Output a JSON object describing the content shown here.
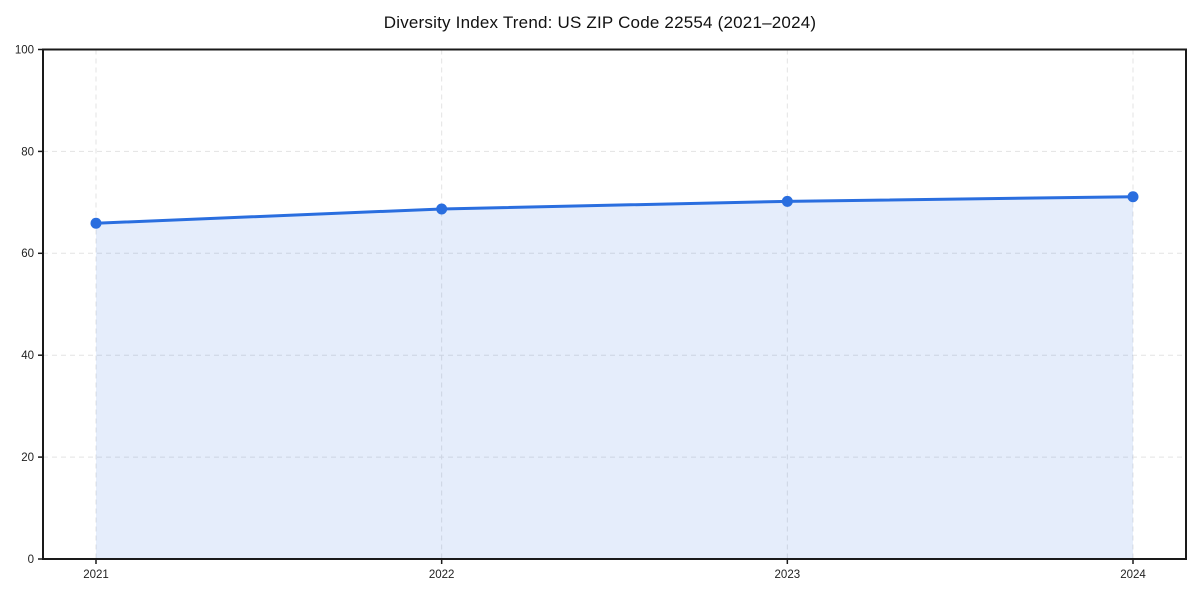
{
  "chart_data": {
    "type": "area",
    "title": "Diversity Index Trend: US ZIP Code 22554 (2021–2024)",
    "x": [
      2021,
      2022,
      2023,
      2024
    ],
    "series": [
      {
        "name": "Diversity Index",
        "values": [
          65.9,
          68.7,
          70.2,
          71.1
        ]
      }
    ],
    "xlabel": "",
    "ylabel": "",
    "ylim": [
      0,
      100
    ],
    "yticks": [
      0,
      20,
      40,
      60,
      80,
      100
    ],
    "grid": true,
    "grid_style": "dashed",
    "legend": false,
    "marker": "circle",
    "colors": {
      "line": "#2a6edf",
      "marker": "#2a6edf",
      "fill": "rgba(42,110,223,0.12)",
      "grid": "#e3e3e3",
      "axis": "#1a1a1a",
      "tick_label": "#222222",
      "title": "#111111"
    }
  }
}
